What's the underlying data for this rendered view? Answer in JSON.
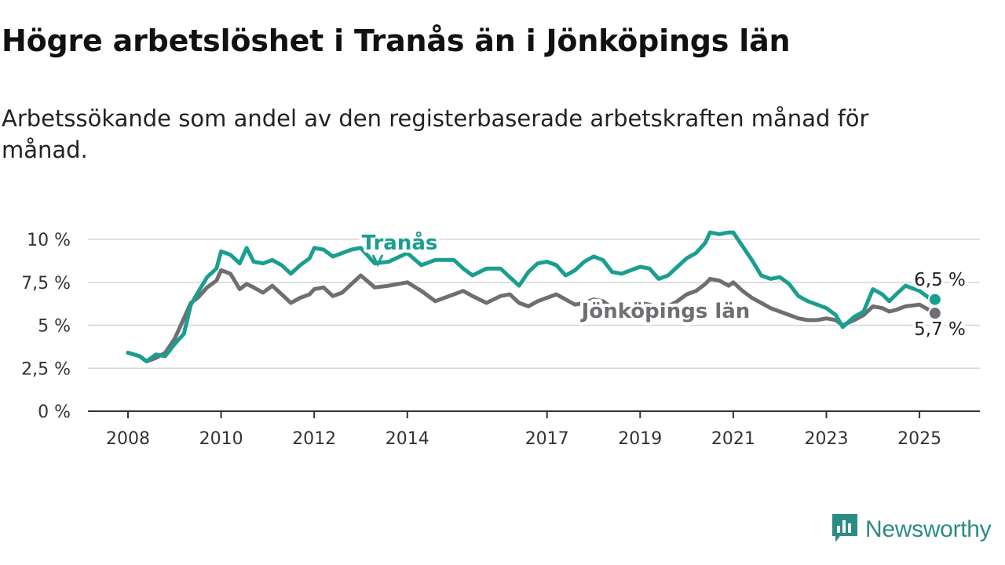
{
  "header": {
    "title": "Högre arbetslöshet i Tranås än i Jönköpings län",
    "subtitle": "Arbetssökande som andel av den registerbaserade arbetskraften månad för månad."
  },
  "brand": {
    "name": "Newsworthy",
    "icon": "bar-chart-speech-bubble-icon",
    "color": "#2a8c84"
  },
  "chart_data": {
    "type": "line",
    "title": "Högre arbetslöshet i Tranås än i Jönköpings län",
    "subtitle": "Arbetssökande som andel av den registerbaserade arbetskraften månad för månad.",
    "ylim": [
      0,
      10
    ],
    "y_ticks": [
      0,
      2.5,
      5,
      7.5,
      10
    ],
    "y_tick_labels": [
      "0 %",
      "2,5 %",
      "5 %",
      "7,5 %",
      "10 %"
    ],
    "x_ticks": [
      2008,
      2010,
      2012,
      2014,
      2017,
      2019,
      2021,
      2023,
      2025
    ],
    "x_tick_labels": [
      "2008",
      "2010",
      "2012",
      "2014",
      "2017",
      "2019",
      "2021",
      "2023",
      "2025"
    ],
    "xlim": [
      2008.0,
      2025.333
    ],
    "grid": "horizontal",
    "series": [
      {
        "name": "Tranås",
        "color": "#1a9e8f",
        "end_label": "6,5 %",
        "points": [
          [
            2008.0,
            3.4
          ],
          [
            2008.25,
            3.2
          ],
          [
            2008.4,
            2.9
          ],
          [
            2008.6,
            3.3
          ],
          [
            2008.8,
            3.2
          ],
          [
            2009.0,
            3.9
          ],
          [
            2009.2,
            4.5
          ],
          [
            2009.35,
            6.2
          ],
          [
            2009.5,
            6.9
          ],
          [
            2009.7,
            7.8
          ],
          [
            2009.9,
            8.3
          ],
          [
            2010.0,
            9.3
          ],
          [
            2010.2,
            9.1
          ],
          [
            2010.4,
            8.6
          ],
          [
            2010.55,
            9.5
          ],
          [
            2010.7,
            8.7
          ],
          [
            2010.9,
            8.6
          ],
          [
            2011.1,
            8.8
          ],
          [
            2011.3,
            8.5
          ],
          [
            2011.5,
            8.0
          ],
          [
            2011.7,
            8.5
          ],
          [
            2011.9,
            8.9
          ],
          [
            2012.0,
            9.5
          ],
          [
            2012.2,
            9.4
          ],
          [
            2012.4,
            9.0
          ],
          [
            2012.6,
            9.2
          ],
          [
            2012.8,
            9.4
          ],
          [
            2013.0,
            9.5
          ],
          [
            2013.3,
            8.6
          ],
          [
            2013.6,
            8.7
          ],
          [
            2014.0,
            9.2
          ],
          [
            2014.3,
            8.5
          ],
          [
            2014.6,
            8.8
          ],
          [
            2015.0,
            8.8
          ],
          [
            2015.2,
            8.3
          ],
          [
            2015.4,
            7.9
          ],
          [
            2015.7,
            8.3
          ],
          [
            2016.0,
            8.3
          ],
          [
            2016.2,
            7.8
          ],
          [
            2016.4,
            7.3
          ],
          [
            2016.6,
            8.1
          ],
          [
            2016.8,
            8.6
          ],
          [
            2017.0,
            8.7
          ],
          [
            2017.2,
            8.5
          ],
          [
            2017.4,
            7.9
          ],
          [
            2017.6,
            8.2
          ],
          [
            2017.8,
            8.7
          ],
          [
            2018.0,
            9.0
          ],
          [
            2018.2,
            8.8
          ],
          [
            2018.4,
            8.1
          ],
          [
            2018.6,
            8.0
          ],
          [
            2018.8,
            8.2
          ],
          [
            2019.0,
            8.4
          ],
          [
            2019.2,
            8.3
          ],
          [
            2019.4,
            7.7
          ],
          [
            2019.6,
            7.9
          ],
          [
            2019.8,
            8.4
          ],
          [
            2020.0,
            8.9
          ],
          [
            2020.2,
            9.2
          ],
          [
            2020.4,
            9.8
          ],
          [
            2020.5,
            10.4
          ],
          [
            2020.7,
            10.3
          ],
          [
            2020.9,
            10.4
          ],
          [
            2021.0,
            10.4
          ],
          [
            2021.2,
            9.6
          ],
          [
            2021.4,
            8.8
          ],
          [
            2021.6,
            7.9
          ],
          [
            2021.8,
            7.7
          ],
          [
            2022.0,
            7.8
          ],
          [
            2022.2,
            7.4
          ],
          [
            2022.4,
            6.7
          ],
          [
            2022.6,
            6.4
          ],
          [
            2022.8,
            6.2
          ],
          [
            2023.0,
            6.0
          ],
          [
            2023.2,
            5.6
          ],
          [
            2023.35,
            4.9
          ],
          [
            2023.6,
            5.5
          ],
          [
            2023.8,
            5.8
          ],
          [
            2024.0,
            7.1
          ],
          [
            2024.2,
            6.8
          ],
          [
            2024.35,
            6.4
          ],
          [
            2024.5,
            6.8
          ],
          [
            2024.7,
            7.3
          ],
          [
            2025.0,
            7.0
          ],
          [
            2025.2,
            6.6
          ],
          [
            2025.333,
            6.5
          ]
        ]
      },
      {
        "name": "Jönköpings län",
        "color": "#6e6e73",
        "end_label": "5,7 %",
        "points": [
          [
            2008.0,
            3.4
          ],
          [
            2008.25,
            3.2
          ],
          [
            2008.4,
            2.9
          ],
          [
            2008.6,
            3.1
          ],
          [
            2008.8,
            3.4
          ],
          [
            2009.0,
            4.2
          ],
          [
            2009.2,
            5.4
          ],
          [
            2009.35,
            6.3
          ],
          [
            2009.5,
            6.6
          ],
          [
            2009.7,
            7.2
          ],
          [
            2009.9,
            7.6
          ],
          [
            2010.0,
            8.2
          ],
          [
            2010.2,
            8.0
          ],
          [
            2010.4,
            7.1
          ],
          [
            2010.55,
            7.4
          ],
          [
            2010.7,
            7.2
          ],
          [
            2010.9,
            6.9
          ],
          [
            2011.1,
            7.3
          ],
          [
            2011.3,
            6.8
          ],
          [
            2011.5,
            6.3
          ],
          [
            2011.7,
            6.6
          ],
          [
            2011.9,
            6.8
          ],
          [
            2012.0,
            7.1
          ],
          [
            2012.2,
            7.2
          ],
          [
            2012.4,
            6.7
          ],
          [
            2012.6,
            6.9
          ],
          [
            2012.8,
            7.4
          ],
          [
            2013.0,
            7.9
          ],
          [
            2013.3,
            7.2
          ],
          [
            2013.6,
            7.3
          ],
          [
            2014.0,
            7.5
          ],
          [
            2014.3,
            7.0
          ],
          [
            2014.6,
            6.4
          ],
          [
            2015.0,
            6.8
          ],
          [
            2015.2,
            7.0
          ],
          [
            2015.4,
            6.7
          ],
          [
            2015.7,
            6.3
          ],
          [
            2016.0,
            6.7
          ],
          [
            2016.2,
            6.8
          ],
          [
            2016.4,
            6.3
          ],
          [
            2016.6,
            6.1
          ],
          [
            2016.8,
            6.4
          ],
          [
            2017.0,
            6.6
          ],
          [
            2017.2,
            6.8
          ],
          [
            2017.4,
            6.5
          ],
          [
            2017.6,
            6.2
          ],
          [
            2017.8,
            6.3
          ],
          [
            2018.0,
            6.5
          ],
          [
            2018.2,
            6.4
          ],
          [
            2018.4,
            6.0
          ],
          [
            2018.6,
            5.9
          ],
          [
            2018.8,
            6.1
          ],
          [
            2019.0,
            6.3
          ],
          [
            2019.2,
            6.2
          ],
          [
            2019.4,
            6.0
          ],
          [
            2019.6,
            6.1
          ],
          [
            2019.8,
            6.4
          ],
          [
            2020.0,
            6.8
          ],
          [
            2020.2,
            7.0
          ],
          [
            2020.4,
            7.4
          ],
          [
            2020.5,
            7.7
          ],
          [
            2020.7,
            7.6
          ],
          [
            2020.9,
            7.3
          ],
          [
            2021.0,
            7.5
          ],
          [
            2021.2,
            7.0
          ],
          [
            2021.4,
            6.6
          ],
          [
            2021.6,
            6.3
          ],
          [
            2021.8,
            6.0
          ],
          [
            2022.0,
            5.8
          ],
          [
            2022.2,
            5.6
          ],
          [
            2022.4,
            5.4
          ],
          [
            2022.6,
            5.3
          ],
          [
            2022.8,
            5.3
          ],
          [
            2023.0,
            5.4
          ],
          [
            2023.2,
            5.3
          ],
          [
            2023.35,
            5.0
          ],
          [
            2023.6,
            5.3
          ],
          [
            2023.8,
            5.6
          ],
          [
            2024.0,
            6.1
          ],
          [
            2024.2,
            6.0
          ],
          [
            2024.35,
            5.8
          ],
          [
            2024.5,
            5.9
          ],
          [
            2024.7,
            6.1
          ],
          [
            2025.0,
            6.2
          ],
          [
            2025.2,
            5.9
          ],
          [
            2025.333,
            5.7
          ]
        ]
      }
    ]
  }
}
